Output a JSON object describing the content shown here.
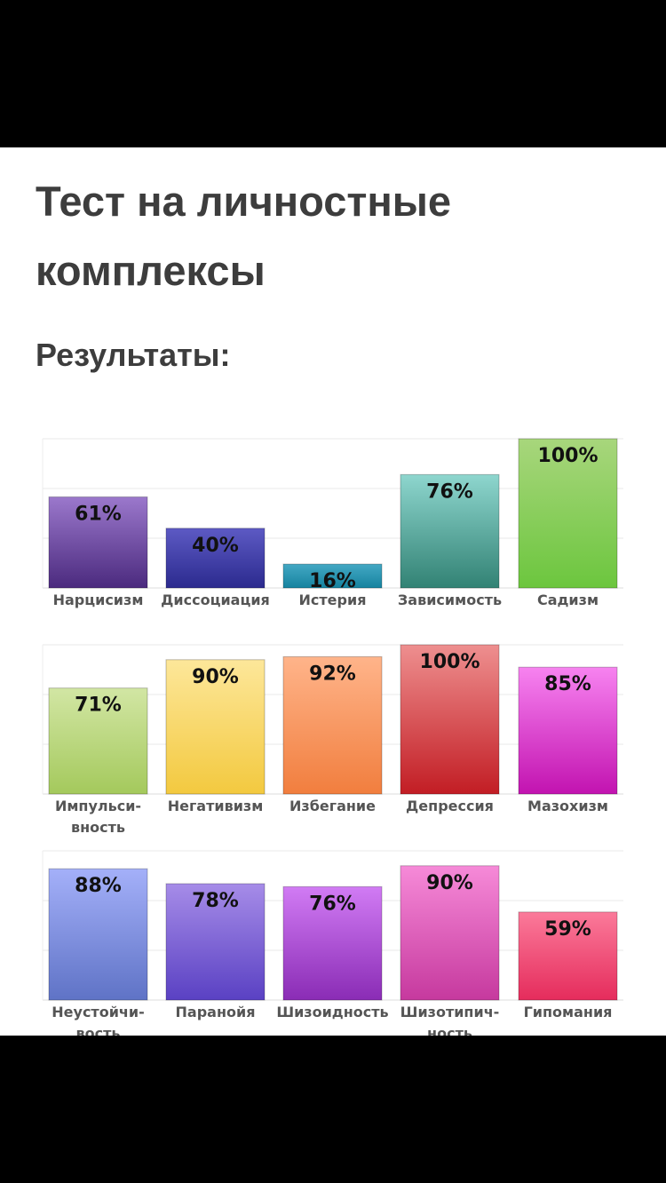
{
  "page": {
    "title": "Тест на личностные комплексы",
    "subtitle": "Результаты:"
  },
  "chart_data": [
    {
      "type": "bar",
      "ylim": [
        0,
        100
      ],
      "grid": true,
      "categories": [
        "Нарцисизм",
        "Диссоциация",
        "Истерия",
        "Зависимость",
        "Садизм"
      ],
      "values": [
        61,
        40,
        16,
        76,
        100
      ],
      "value_labels": [
        "61%",
        "40%",
        "16%",
        "76%",
        "100%"
      ],
      "colors": [
        [
          "#9b78cc",
          "#4b2a7e"
        ],
        [
          "#5d5ac4",
          "#2b2a8e"
        ],
        [
          "#43a8c4",
          "#16839f"
        ],
        [
          "#8ed6ce",
          "#328274"
        ],
        [
          "#a8d67c",
          "#6cc63e"
        ]
      ]
    },
    {
      "type": "bar",
      "ylim": [
        0,
        100
      ],
      "grid": true,
      "categories": [
        "Импульси-вность",
        "Негативизм",
        "Избегание",
        "Депрессия",
        "Мазохизм"
      ],
      "values": [
        71,
        90,
        92,
        100,
        85
      ],
      "value_labels": [
        "71%",
        "90%",
        "92%",
        "100%",
        "85%"
      ],
      "colors": [
        [
          "#d2e6a4",
          "#a4c95c"
        ],
        [
          "#fde79a",
          "#f3c93f"
        ],
        [
          "#ffb48a",
          "#f17e3e"
        ],
        [
          "#ee8f8f",
          "#c21d24"
        ],
        [
          "#f783f0",
          "#c213b0"
        ]
      ]
    },
    {
      "type": "bar",
      "ylim": [
        0,
        100
      ],
      "grid": true,
      "categories": [
        "Неустойчи-вость",
        "Паранойя",
        "Шизоидность",
        "Шизотипич-ность",
        "Гипомания"
      ],
      "values": [
        88,
        78,
        76,
        90,
        59
      ],
      "value_labels": [
        "88%",
        "78%",
        "76%",
        "90%",
        "59%"
      ],
      "colors": [
        [
          "#a4b0f9",
          "#5f73c6"
        ],
        [
          "#a68ce8",
          "#5a41c3"
        ],
        [
          "#d17bf4",
          "#8a2cb5"
        ],
        [
          "#f68ad8",
          "#c6399e"
        ],
        [
          "#fb7a9a",
          "#e52c5c"
        ]
      ]
    }
  ]
}
